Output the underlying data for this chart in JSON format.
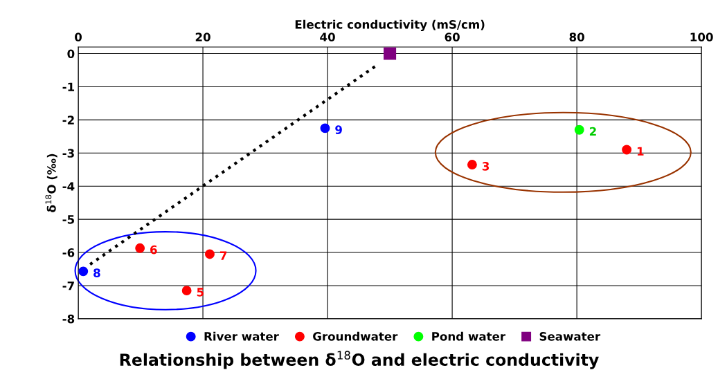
{
  "chart_data": {
    "type": "scatter",
    "title": "Relationship between δ$^{18}$O and electric conductivity",
    "xlabel": "Electric conductivity (mS/cm)",
    "ylabel": "δ$^{18}$O (‰)",
    "xlim": [
      0,
      100
    ],
    "xticks": [
      0,
      20,
      40,
      60,
      80,
      100
    ],
    "ylim": [
      -8,
      0.2
    ],
    "yticks": [
      -8,
      -7,
      -6,
      -5,
      -4,
      -3,
      -2,
      -1,
      0
    ],
    "grid": true,
    "legend": "bottom",
    "series": [
      {
        "name": "River water",
        "color": "#0000ff",
        "marker": "circle",
        "x": [
          39.6,
          0.8
        ],
        "values": [
          -2.25,
          -6.57
        ]
      },
      {
        "name": "Groundwater",
        "color": "#ff0000",
        "marker": "circle",
        "x": [
          88.0,
          63.2,
          9.9,
          21.1,
          17.4
        ],
        "values": [
          -2.9,
          -3.35,
          -5.87,
          -6.05,
          -7.15
        ]
      },
      {
        "name": "Pond water",
        "color": "#00ff00",
        "marker": "circle",
        "x": [
          80.4
        ],
        "values": [
          -2.3
        ]
      },
      {
        "name": "Seawater",
        "color": "#800080",
        "marker": "square",
        "x": [
          50
        ],
        "values": [
          0
        ]
      },
      {
        "type": "line",
        "color": "#000000",
        "line_style": "dotted",
        "marker": "none",
        "x": [
          1.9,
          47.6
        ],
        "values": [
          -6.36,
          -0.39
        ]
      }
    ],
    "annotations": [
      {
        "text": "1",
        "x": 88.0,
        "y": -2.9
      },
      {
        "text": "2",
        "x": 80.4,
        "y": -2.3
      },
      {
        "text": "3",
        "x": 63.2,
        "y": -3.35
      },
      {
        "text": "5",
        "x": 17.4,
        "y": -7.15
      },
      {
        "text": "6",
        "x": 9.9,
        "y": -5.87
      },
      {
        "text": "7",
        "x": 21.1,
        "y": -6.05
      },
      {
        "text": "8",
        "x": 0.8,
        "y": -6.57
      },
      {
        "text": "9",
        "x": 39.6,
        "y": -2.25
      }
    ]
  }
}
